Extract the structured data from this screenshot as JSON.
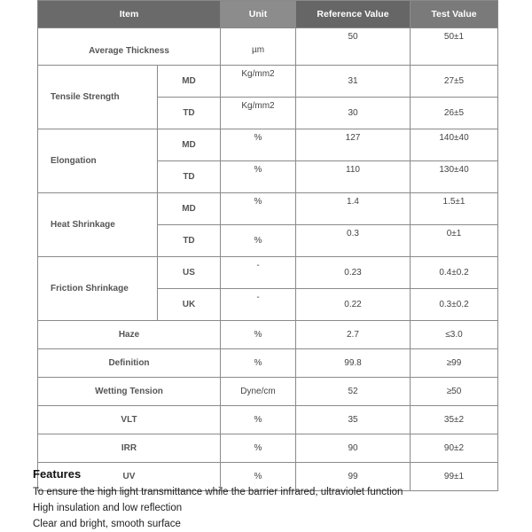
{
  "table": {
    "headers": {
      "item": "Item",
      "unit": "Unit",
      "reference": "Reference Value",
      "test": "Test Value"
    },
    "average_thickness": {
      "label": "Average Thickness",
      "unit": "µm",
      "reference": "50",
      "test": "50±1"
    },
    "tensile_strength": {
      "label": "Tensile Strength",
      "rows": [
        {
          "sub": "MD",
          "unit": "Kg/mm2",
          "reference": "31",
          "test": "27±5"
        },
        {
          "sub": "TD",
          "unit": "Kg/mm2",
          "reference": "30",
          "test": "26±5"
        }
      ]
    },
    "elongation": {
      "label": "Elongation",
      "rows": [
        {
          "sub": "MD",
          "unit": "%",
          "reference": "127",
          "test": "140±40"
        },
        {
          "sub": "TD",
          "unit": "%",
          "reference": "110",
          "test": "130±40"
        }
      ]
    },
    "heat_shrinkage": {
      "label": "Heat Shrinkage",
      "rows": [
        {
          "sub": "MD",
          "unit": "%",
          "reference": "1.4",
          "test": "1.5±1"
        },
        {
          "sub": "TD",
          "unit": "%",
          "reference": "0.3",
          "test": "0±1"
        }
      ]
    },
    "friction_shrinkage": {
      "label": "Friction Shrinkage",
      "rows": [
        {
          "sub": "US",
          "unit": "-",
          "reference": "0.23",
          "test": "0.4±0.2"
        },
        {
          "sub": "UK",
          "unit": "-",
          "reference": "0.22",
          "test": "0.3±0.2"
        }
      ]
    },
    "simple_rows": [
      {
        "label": "Haze",
        "unit": "%",
        "reference": "2.7",
        "test": "≤3.0"
      },
      {
        "label": "Definition",
        "unit": "%",
        "reference": "99.8",
        "test": "≥99"
      },
      {
        "label": "Wetting Tension",
        "unit": "Dyne/cm",
        "reference": "52",
        "test": "≥50"
      },
      {
        "label": "VLT",
        "unit": "%",
        "reference": "35",
        "test": "35±2"
      },
      {
        "label": "IRR",
        "unit": "%",
        "reference": "90",
        "test": "90±2"
      },
      {
        "label": "UV",
        "unit": "%",
        "reference": "99",
        "test": "99±1"
      }
    ]
  },
  "features": {
    "title": "Features",
    "items": [
      "To ensure the high light transmittance while the barrier infrared, ultraviolet function",
      "High insulation and low reflection",
      "Clear and bright, smooth surface"
    ]
  }
}
